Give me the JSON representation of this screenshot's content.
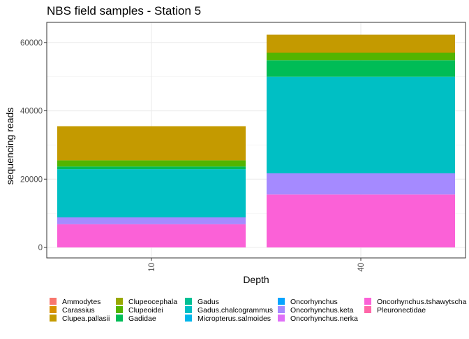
{
  "chart_data": {
    "type": "bar",
    "stacked": true,
    "title": "NBS field samples - Station 5",
    "xlabel": "Depth",
    "ylabel": "sequencing reads",
    "categories": [
      "10",
      "40"
    ],
    "ylim": [
      0,
      64000
    ],
    "yticks": [
      0,
      20000,
      40000,
      60000
    ],
    "grid": true,
    "legend_position": "bottom",
    "series": [
      {
        "name": "Ammodytes",
        "color": "#F8766D",
        "values": [
          0,
          0
        ]
      },
      {
        "name": "Carassius",
        "color": "#D89000",
        "values": [
          0,
          0
        ]
      },
      {
        "name": "Clupea.pallasii",
        "color": "#C49A00",
        "values": [
          10000,
          5300
        ]
      },
      {
        "name": "Clupeocephala",
        "color": "#99A800",
        "values": [
          0,
          0
        ]
      },
      {
        "name": "Clupeoidei",
        "color": "#53B400",
        "values": [
          1800,
          2200
        ]
      },
      {
        "name": "Gadidae",
        "color": "#00BC56",
        "values": [
          800,
          4800
        ]
      },
      {
        "name": "Gadus",
        "color": "#00C094",
        "values": [
          0,
          0
        ]
      },
      {
        "name": "Gadus.chalcogrammus",
        "color": "#00BFC4",
        "values": [
          14100,
          28300
        ]
      },
      {
        "name": "Micropterus.salmoides",
        "color": "#00B6EB",
        "values": [
          0,
          0
        ]
      },
      {
        "name": "Oncorhynchus",
        "color": "#06A4FF",
        "values": [
          0,
          0
        ]
      },
      {
        "name": "Oncorhynchus.keta",
        "color": "#A58AFF",
        "values": [
          2000,
          6200
        ]
      },
      {
        "name": "Oncorhynchus.nerka",
        "color": "#DF70F8",
        "values": [
          0,
          0
        ]
      },
      {
        "name": "Oncorhynchus.tshawytscha",
        "color": "#FB61D7",
        "values": [
          6800,
          15500
        ]
      },
      {
        "name": "Pleuronectidae",
        "color": "#FF66A8",
        "values": [
          0,
          0
        ]
      }
    ]
  }
}
